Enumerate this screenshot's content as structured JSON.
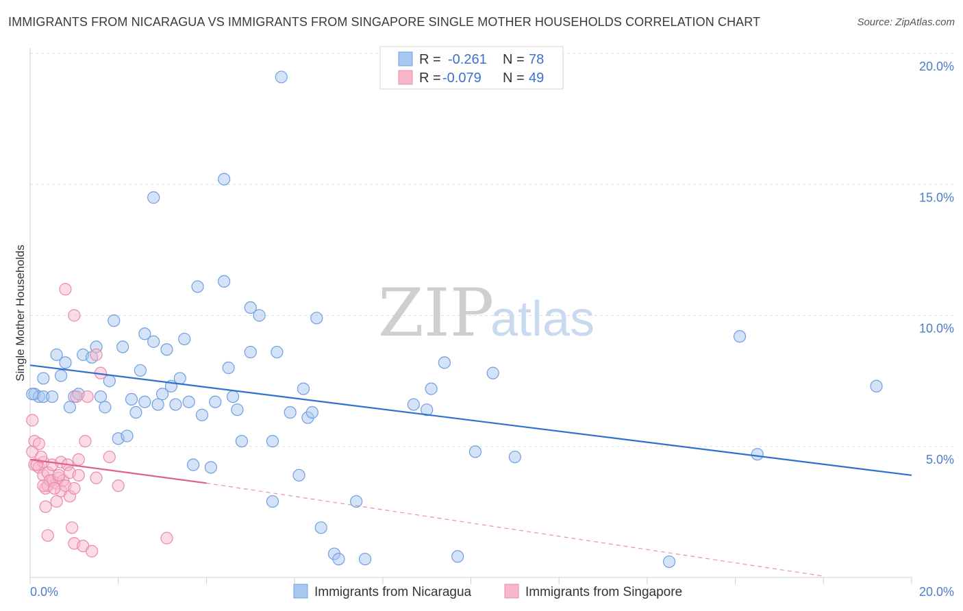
{
  "title": "IMMIGRANTS FROM NICARAGUA VS IMMIGRANTS FROM SINGAPORE SINGLE MOTHER HOUSEHOLDS CORRELATION CHART",
  "source": "Source: ZipAtlas.com",
  "watermark": {
    "zip": "ZIP",
    "atlas": "atlas"
  },
  "colors": {
    "nicaragua_fill": "#a9c8f0",
    "nicaragua_stroke": "#6f9ee0",
    "nicaragua_line": "#2f6fcf",
    "singapore_fill": "#f7b8cc",
    "singapore_stroke": "#e88aa8",
    "singapore_line": "#e0608c",
    "tick_label": "#4a7cc9",
    "grid": "#dddddd"
  },
  "stats": [
    {
      "r_label": "R =",
      "r_value": "-0.261",
      "n_label": "N =",
      "n_value": "78"
    },
    {
      "r_label": "R =",
      "r_value": "-0.079",
      "n_label": "N =",
      "n_value": "49"
    }
  ],
  "chart_data": {
    "type": "scatter",
    "title": "IMMIGRANTS FROM NICARAGUA VS IMMIGRANTS FROM SINGAPORE SINGLE MOTHER HOUSEHOLDS CORRELATION CHART",
    "xlabel": "",
    "ylabel": "Single Mother Households",
    "xlim": [
      0,
      20
    ],
    "ylim": [
      0,
      20
    ],
    "x_tick_labels": [
      "0.0%",
      "20.0%"
    ],
    "y_ticks": [
      5,
      10,
      15,
      20
    ],
    "y_tick_labels": [
      "5.0%",
      "10.0%",
      "15.0%",
      "20.0%"
    ],
    "grid": true,
    "legend_position": "bottom",
    "series": [
      {
        "name": "Immigrants from Nicaragua",
        "trend": {
          "x": [
            0,
            20
          ],
          "y": [
            8.1,
            3.9
          ]
        },
        "points": [
          [
            0.1,
            7.0
          ],
          [
            0.2,
            6.9
          ],
          [
            0.3,
            7.6
          ],
          [
            0.3,
            6.9
          ],
          [
            0.5,
            6.9
          ],
          [
            0.6,
            8.5
          ],
          [
            0.7,
            7.7
          ],
          [
            0.8,
            8.2
          ],
          [
            0.9,
            6.5
          ],
          [
            1.0,
            6.9
          ],
          [
            1.1,
            7.0
          ],
          [
            1.2,
            8.5
          ],
          [
            1.4,
            8.4
          ],
          [
            1.5,
            8.8
          ],
          [
            1.6,
            6.9
          ],
          [
            1.7,
            6.5
          ],
          [
            1.8,
            7.5
          ],
          [
            1.9,
            9.8
          ],
          [
            2.0,
            5.3
          ],
          [
            2.1,
            8.8
          ],
          [
            2.2,
            5.4
          ],
          [
            2.3,
            6.8
          ],
          [
            2.4,
            6.3
          ],
          [
            2.5,
            7.9
          ],
          [
            2.6,
            9.3
          ],
          [
            2.6,
            6.7
          ],
          [
            2.8,
            9.0
          ],
          [
            2.8,
            14.5
          ],
          [
            2.9,
            6.6
          ],
          [
            3.0,
            7.0
          ],
          [
            3.1,
            8.7
          ],
          [
            3.2,
            7.3
          ],
          [
            3.3,
            6.6
          ],
          [
            3.4,
            7.6
          ],
          [
            3.5,
            9.1
          ],
          [
            3.6,
            6.7
          ],
          [
            3.7,
            4.3
          ],
          [
            3.8,
            11.1
          ],
          [
            3.9,
            6.2
          ],
          [
            4.1,
            4.2
          ],
          [
            4.2,
            6.7
          ],
          [
            4.4,
            15.2
          ],
          [
            4.4,
            11.3
          ],
          [
            4.5,
            8.0
          ],
          [
            4.6,
            6.9
          ],
          [
            4.7,
            6.4
          ],
          [
            4.8,
            5.2
          ],
          [
            5.0,
            10.3
          ],
          [
            5.0,
            8.6
          ],
          [
            5.2,
            10.0
          ],
          [
            5.5,
            5.2
          ],
          [
            5.5,
            2.9
          ],
          [
            5.6,
            8.6
          ],
          [
            5.7,
            19.1
          ],
          [
            5.9,
            6.3
          ],
          [
            6.1,
            3.9
          ],
          [
            6.2,
            7.2
          ],
          [
            6.3,
            6.1
          ],
          [
            6.4,
            6.3
          ],
          [
            6.5,
            9.9
          ],
          [
            6.6,
            1.9
          ],
          [
            6.9,
            0.9
          ],
          [
            7.0,
            0.7
          ],
          [
            7.4,
            2.9
          ],
          [
            7.6,
            0.7
          ],
          [
            8.7,
            6.6
          ],
          [
            9.0,
            6.4
          ],
          [
            9.1,
            7.2
          ],
          [
            9.4,
            8.2
          ],
          [
            9.7,
            0.8
          ],
          [
            10.1,
            4.8
          ],
          [
            10.5,
            7.8
          ],
          [
            11.0,
            4.6
          ],
          [
            14.5,
            0.6
          ],
          [
            16.1,
            9.2
          ],
          [
            16.5,
            4.7
          ],
          [
            19.2,
            7.3
          ],
          [
            0.05,
            7.0
          ]
        ]
      },
      {
        "name": "Immigrants from Singapore",
        "trend": {
          "x": [
            0,
            4.0
          ],
          "y": [
            4.5,
            3.6
          ]
        },
        "trend_extended": {
          "x": [
            4.0,
            18.0
          ],
          "y": [
            3.6,
            0.05
          ]
        },
        "points": [
          [
            0.05,
            6.0
          ],
          [
            0.05,
            4.8
          ],
          [
            0.1,
            5.2
          ],
          [
            0.1,
            4.3
          ],
          [
            0.2,
            5.1
          ],
          [
            0.2,
            4.2
          ],
          [
            0.3,
            4.4
          ],
          [
            0.3,
            3.9
          ],
          [
            0.35,
            3.4
          ],
          [
            0.35,
            2.7
          ],
          [
            0.4,
            4.0
          ],
          [
            0.4,
            3.5
          ],
          [
            0.4,
            1.6
          ],
          [
            0.5,
            3.7
          ],
          [
            0.5,
            4.3
          ],
          [
            0.6,
            2.9
          ],
          [
            0.6,
            3.6
          ],
          [
            0.65,
            3.8
          ],
          [
            0.7,
            3.3
          ],
          [
            0.7,
            4.4
          ],
          [
            0.75,
            3.7
          ],
          [
            0.8,
            11.0
          ],
          [
            0.8,
            3.5
          ],
          [
            0.85,
            4.3
          ],
          [
            0.9,
            3.1
          ],
          [
            0.9,
            4.0
          ],
          [
            0.95,
            1.9
          ],
          [
            1.0,
            3.4
          ],
          [
            1.0,
            1.3
          ],
          [
            1.0,
            10.0
          ],
          [
            1.05,
            6.9
          ],
          [
            1.1,
            3.9
          ],
          [
            1.1,
            4.5
          ],
          [
            1.2,
            1.2
          ],
          [
            1.25,
            5.2
          ],
          [
            1.3,
            6.9
          ],
          [
            1.4,
            1.0
          ],
          [
            1.5,
            8.5
          ],
          [
            1.5,
            3.8
          ],
          [
            1.6,
            7.8
          ],
          [
            1.8,
            4.6
          ],
          [
            2.0,
            3.5
          ],
          [
            3.1,
            1.5
          ],
          [
            0.15,
            4.3
          ],
          [
            0.25,
            4.6
          ],
          [
            0.45,
            3.7
          ],
          [
            0.55,
            3.4
          ],
          [
            0.65,
            3.9
          ],
          [
            0.3,
            3.5
          ]
        ]
      }
    ]
  }
}
